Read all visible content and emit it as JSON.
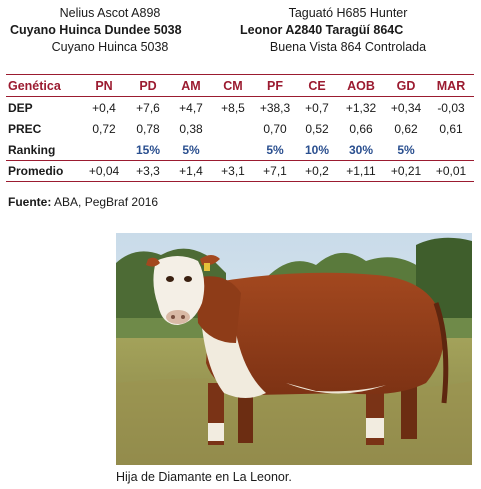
{
  "pedigree": {
    "left": [
      "Nelius Ascot A898",
      "Cuyano Huinca Dundee 5038",
      "Cuyano Huinca 5038"
    ],
    "right": [
      "Taguató H685 Hunter",
      "Leonor A2840 Taragüí 864C",
      "Buena Vista 864 Controlada"
    ]
  },
  "table": {
    "header_label": "Genética",
    "columns": [
      "PN",
      "PD",
      "AM",
      "CM",
      "PF",
      "CE",
      "AOB",
      "GD",
      "MAR"
    ],
    "rows": [
      {
        "label": "DEP",
        "values": [
          "+0,4",
          "+7,6",
          "+4,7",
          "+8,5",
          "+38,3",
          "+0,7",
          "+1,32",
          "+0,34",
          "-0,03"
        ]
      },
      {
        "label": "PREC",
        "values": [
          "0,72",
          "0,78",
          "0,38",
          "",
          "0,70",
          "0,52",
          "0,66",
          "0,62",
          "0,61"
        ]
      },
      {
        "label": "Ranking",
        "values": [
          "",
          "15%",
          "5%",
          "",
          "5%",
          "10%",
          "30%",
          "5%",
          ""
        ]
      },
      {
        "label": "Promedio",
        "values": [
          "+0,04",
          "+3,3",
          "+1,4",
          "+3,1",
          "+7,1",
          "+0,2",
          "+1,11",
          "+0,21",
          "+0,01"
        ]
      }
    ]
  },
  "source": {
    "label": "Fuente:",
    "text": "ABA, PegBraf 2016"
  },
  "photo": {
    "caption": "Hija de Diamante en La Leonor."
  },
  "colors": {
    "accent": "#9b1b30",
    "ranking": "#2a4f8f"
  }
}
